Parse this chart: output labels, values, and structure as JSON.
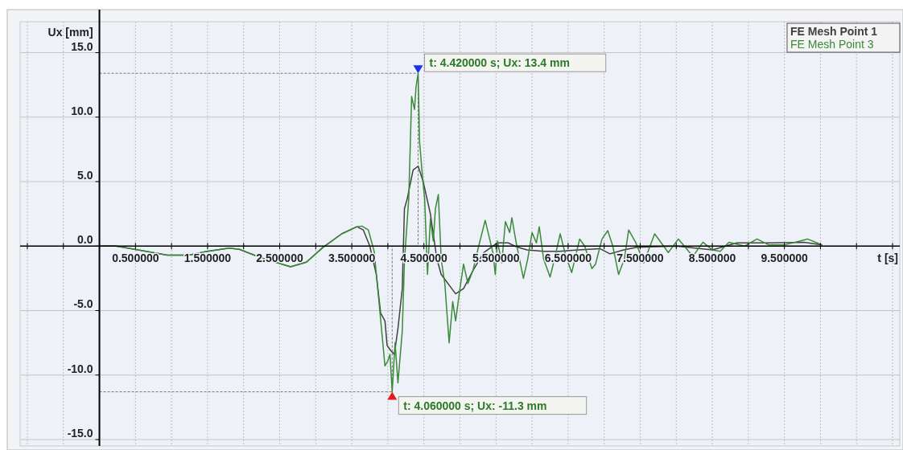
{
  "chart_data": {
    "type": "line",
    "xlabel": "t [s]",
    "ylabel": "Ux [mm]",
    "xlim": [
      -1.1,
      11.1
    ],
    "ylim": [
      -15.5,
      17.4
    ],
    "xticks": [
      {
        "value": -1,
        "label": null
      },
      {
        "value": -0.5,
        "label": null
      },
      {
        "value": 0,
        "label": null
      },
      {
        "value": 0.5,
        "label": "0.500000"
      },
      {
        "value": 1,
        "label": null
      },
      {
        "value": 1.5,
        "label": "1.500000"
      },
      {
        "value": 2,
        "label": null
      },
      {
        "value": 2.5,
        "label": "2.500000"
      },
      {
        "value": 3,
        "label": null
      },
      {
        "value": 3.5,
        "label": "3.500000"
      },
      {
        "value": 4,
        "label": null
      },
      {
        "value": 4.5,
        "label": "4.500000"
      },
      {
        "value": 5,
        "label": null
      },
      {
        "value": 5.5,
        "label": "5.500000"
      },
      {
        "value": 6,
        "label": null
      },
      {
        "value": 6.5,
        "label": "6.500000"
      },
      {
        "value": 7,
        "label": null
      },
      {
        "value": 7.5,
        "label": "7.500000"
      },
      {
        "value": 8,
        "label": null
      },
      {
        "value": 8.5,
        "label": "8.500000"
      },
      {
        "value": 9,
        "label": null
      },
      {
        "value": 9.5,
        "label": "9.500000"
      },
      {
        "value": 10,
        "label": null
      },
      {
        "value": 10.5,
        "label": null
      },
      {
        "value": 11,
        "label": null
      }
    ],
    "yticks": [
      {
        "value": 15,
        "label": "15.0"
      },
      {
        "value": 10,
        "label": "10.0"
      },
      {
        "value": 5,
        "label": "5.0"
      },
      {
        "value": 0,
        "label": "0.0"
      },
      {
        "value": -5,
        "label": "-5.0"
      },
      {
        "value": -10,
        "label": "-10.0"
      },
      {
        "value": -15,
        "label": "-15.0"
      }
    ],
    "grid": true,
    "legend": "top right",
    "annotations": [
      {
        "text": "t: 4.420000 s; Ux: 13.4 mm",
        "x": 4.42,
        "y": 13.4
      },
      {
        "text": "t: 4.060000 s; Ux: -11.3 mm",
        "x": 4.06,
        "y": -11.3
      }
    ],
    "series": [
      {
        "name": "FE Mesh Point 1",
        "color": "#404040",
        "x": [
          0,
          0.23,
          0.49,
          0.94,
          1.24,
          1.5,
          1.8,
          1.94,
          2.24,
          2.65,
          2.87,
          3.1,
          3.36,
          3.57,
          3.66,
          3.75,
          3.84,
          3.9,
          3.96,
          3.99,
          4.04,
          4.09,
          4.14,
          4.2,
          4.23,
          4.27,
          4.35,
          4.42,
          4.49,
          4.59,
          4.68,
          4.74,
          4.94,
          5.05,
          5.18,
          5.33,
          5.52,
          5.67,
          5.78,
          5.93,
          6.16,
          6.38,
          6.64,
          6.94,
          7.08,
          7.27,
          7.45,
          8.0,
          8.5,
          8.84,
          9.32,
          9.77,
          10.02
        ],
        "values": [
          0,
          0,
          -0.25,
          -0.7,
          -0.7,
          -0.4,
          -0.15,
          -0.25,
          -0.9,
          -1.6,
          -1.25,
          -0.1,
          0.95,
          1.5,
          1.25,
          0,
          -2.2,
          -5.2,
          -5.8,
          -7.7,
          -8.1,
          -8.4,
          -6.4,
          -3.3,
          2.9,
          3.7,
          5.9,
          6.2,
          5.0,
          2.5,
          -1.0,
          -2.2,
          -3.7,
          -3.3,
          -1.9,
          -0.5,
          0.25,
          0.25,
          -0.05,
          -0.3,
          -0.4,
          -0.4,
          -0.3,
          -0.2,
          -0.6,
          -0.3,
          -0.1,
          0,
          -0.3,
          0.25,
          0.25,
          0.3,
          0.1
        ]
      },
      {
        "name": "FE Mesh Point 3",
        "color": "#3a8a3a",
        "x": [
          0,
          0.23,
          0.49,
          0.94,
          1.24,
          1.5,
          1.8,
          1.94,
          2.24,
          2.65,
          2.87,
          3.1,
          3.36,
          3.57,
          3.64,
          3.73,
          3.81,
          3.88,
          3.96,
          4.0,
          4.03,
          4.06,
          4.1,
          4.14,
          4.2,
          4.23,
          4.29,
          4.33,
          4.37,
          4.39,
          4.42,
          4.44,
          4.48,
          4.51,
          4.55,
          4.59,
          4.63,
          4.66,
          4.7,
          4.74,
          4.79,
          4.85,
          4.9,
          4.94,
          5.0,
          5.05,
          5.11,
          5.18,
          5.26,
          5.35,
          5.41,
          5.46,
          5.49,
          5.52,
          5.58,
          5.63,
          5.69,
          5.72,
          5.78,
          5.88,
          5.94,
          6.0,
          6.06,
          6.1,
          6.16,
          6.25,
          6.32,
          6.39,
          6.47,
          6.55,
          6.66,
          6.73,
          6.83,
          6.88,
          6.97,
          7.05,
          7.12,
          7.2,
          7.28,
          7.34,
          7.44,
          7.55,
          7.7,
          7.89,
          8.03,
          8.23,
          8.37,
          8.5,
          8.61,
          8.73,
          8.95,
          9.12,
          9.28,
          9.51,
          9.82,
          10.02
        ],
        "values": [
          0,
          0,
          -0.25,
          -0.7,
          -0.7,
          -0.4,
          -0.15,
          -0.25,
          -0.9,
          -1.6,
          -1.25,
          -0.1,
          0.95,
          1.5,
          1.55,
          1.25,
          -0.4,
          -4.5,
          -9.3,
          -8.9,
          -8.4,
          -11.3,
          -7.5,
          -10.6,
          -6.6,
          -1.2,
          3.7,
          11.6,
          10.6,
          12.3,
          13.4,
          8.1,
          5.4,
          3.7,
          -2.2,
          2.1,
          0.4,
          2.9,
          4.0,
          -1.0,
          -2.9,
          -7.5,
          -4.3,
          -5.8,
          -3.3,
          -1.4,
          -2.9,
          -1.9,
          0,
          2.0,
          0.6,
          -0.6,
          -2.2,
          0.4,
          -1.3,
          1.9,
          1.05,
          2.2,
          0.25,
          -2.5,
          -1.0,
          1.05,
          0.25,
          1.5,
          -1.0,
          -2.4,
          -0.8,
          0.95,
          -0.8,
          -2.05,
          0.55,
          0,
          -1.75,
          -1.4,
          0.55,
          1.2,
          0,
          -2.2,
          -1.0,
          1.25,
          0.25,
          -1.3,
          0.95,
          -0.5,
          0.55,
          -0.8,
          0.3,
          -0.3,
          -0.4,
          0.3,
          0,
          0.55,
          0.1,
          0.1,
          0.55,
          0.1
        ]
      }
    ]
  }
}
